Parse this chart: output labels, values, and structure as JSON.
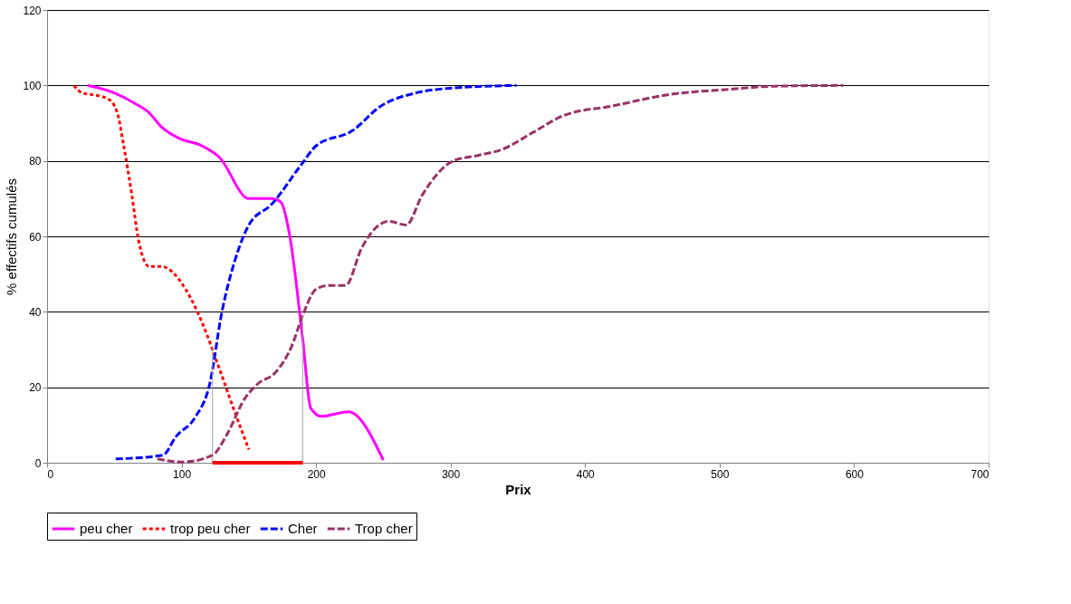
{
  "chart_data": {
    "type": "line",
    "xlabel": "Prix",
    "ylabel": "% effectifs cumulés",
    "xlim": [
      0,
      700
    ],
    "xticks": [
      0,
      100,
      200,
      300,
      400,
      500,
      600,
      700
    ],
    "ylim": [
      0,
      120
    ],
    "yticks": [
      0,
      20,
      40,
      60,
      80,
      100,
      120
    ],
    "grid": "y",
    "legend": "bottom",
    "series": [
      {
        "name": "peu cher",
        "color": "#ff00ff",
        "line_style": "solid",
        "x": [
          30,
          50,
          65,
          76,
          85,
          98,
          115,
          128,
          150,
          167,
          174,
          180,
          190,
          196,
          204,
          224,
          250
        ],
        "values": [
          100,
          98,
          95.3,
          92.7,
          89,
          86,
          84,
          81,
          70,
          70,
          69,
          61,
          33,
          14.5,
          12.3,
          13.5,
          0.7
        ]
      },
      {
        "name": "trop peu cher",
        "color": "#ff0000",
        "line_style": "dotted",
        "x": [
          20,
          26,
          31,
          45,
          52,
          57,
          63,
          68,
          76,
          85,
          103,
          116,
          127,
          139,
          150
        ],
        "values": [
          100,
          98,
          97.7,
          96.5,
          93,
          84,
          71,
          59,
          52,
          52,
          46,
          36.5,
          26,
          14,
          3.5
        ]
      },
      {
        "name": "Cher",
        "color": "#0000ff",
        "line_style": "dashed",
        "x": [
          51,
          86,
          96,
          110,
          121,
          130,
          140,
          150,
          167,
          189,
          200,
          227,
          248,
          274,
          301,
          349
        ],
        "values": [
          1,
          2,
          7,
          12,
          21,
          40,
          54,
          63,
          68.5,
          79,
          84,
          88,
          94.5,
          98,
          99.3,
          100
        ]
      },
      {
        "name": "Trop cher",
        "color": "#993366",
        "line_style": "dashed",
        "x": [
          82,
          101,
          123,
          133,
          147,
          157,
          170,
          182,
          190,
          200,
          210,
          222,
          234,
          254,
          267,
          279,
          302,
          321,
          338,
          361,
          384,
          421,
          461,
          508,
          541,
          592
        ],
        "values": [
          1,
          0.2,
          2,
          7,
          17,
          21,
          24,
          31,
          39,
          46,
          47,
          47,
          57,
          64,
          63,
          71,
          80,
          81.5,
          83,
          87.5,
          92,
          94.6,
          97.5,
          99,
          99.8,
          100
        ]
      },
      {
        "color": "#a0a0a0",
        "line_style": "solid",
        "x": [
          123,
          123
        ],
        "values": [
          0,
          31
        ]
      },
      {
        "color": "#a0a0a0",
        "line_style": "solid",
        "x": [
          190,
          190
        ],
        "values": [
          0,
          39
        ]
      },
      {
        "color": "#ff0000",
        "line_style": "solid",
        "x": [
          123,
          190
        ],
        "values": [
          0,
          0
        ]
      }
    ]
  }
}
